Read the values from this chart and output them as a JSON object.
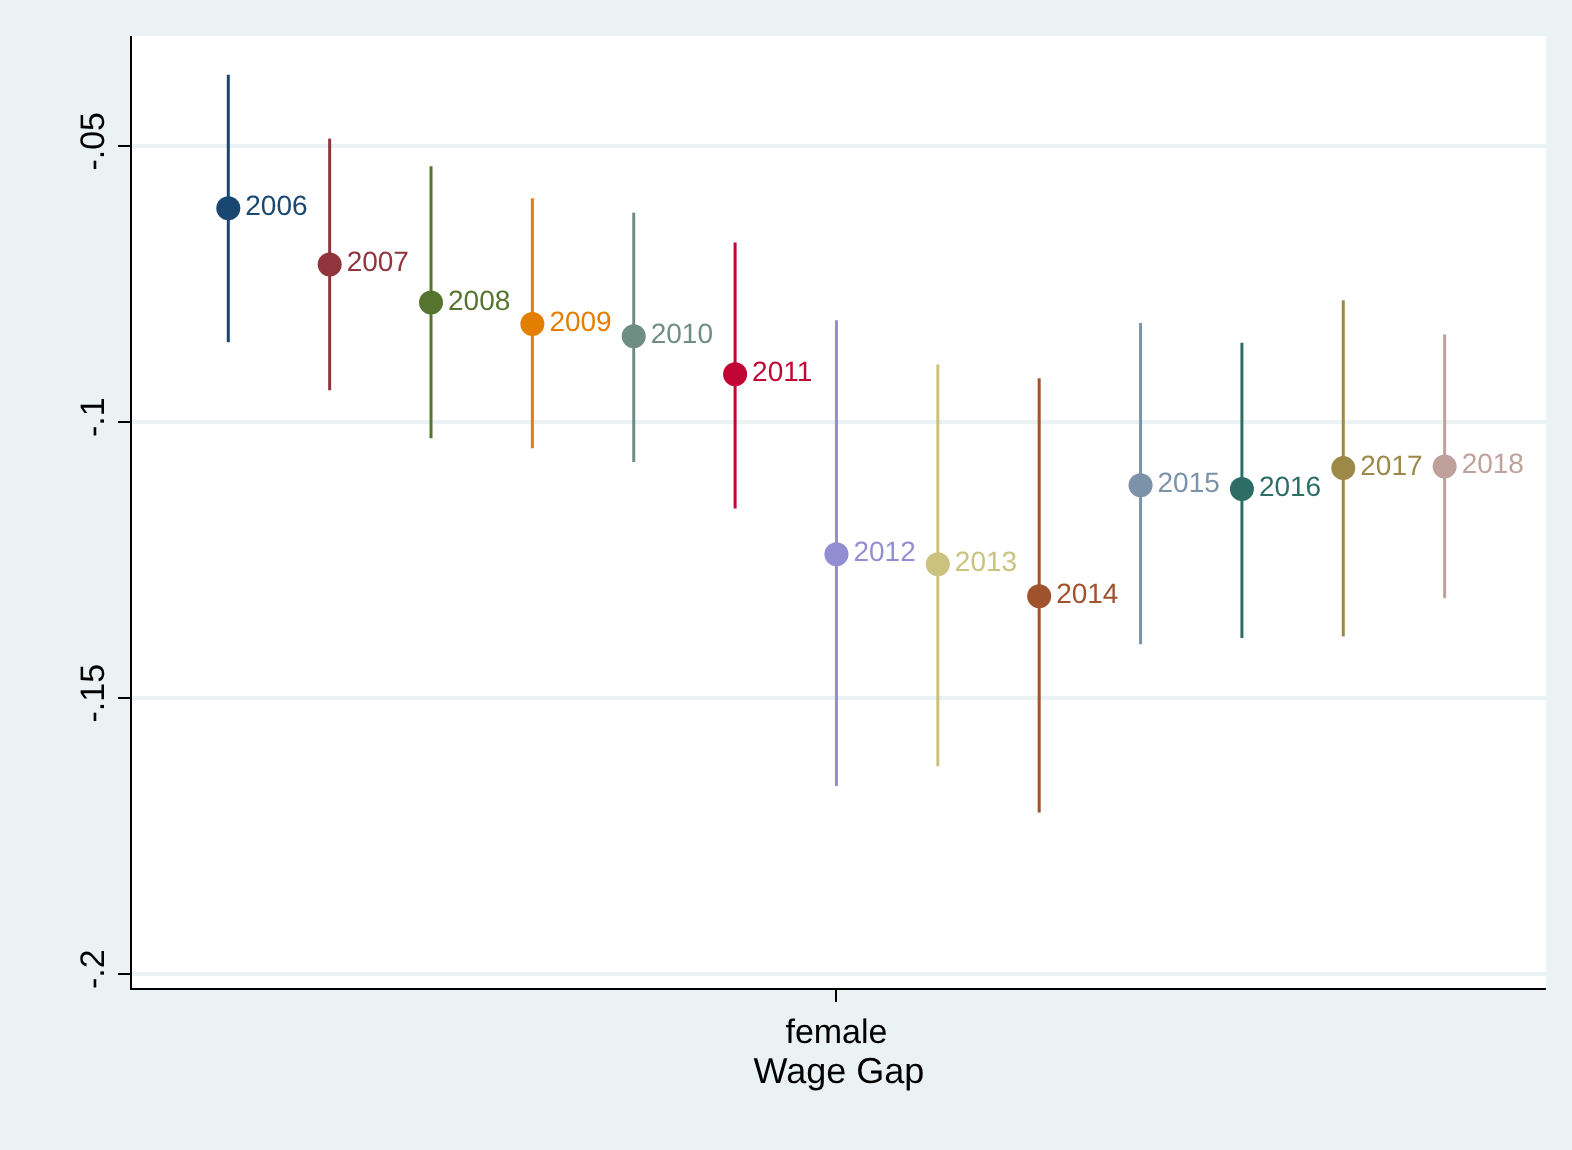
{
  "chart_data": {
    "type": "scatter",
    "xlabel": "Wage Gap",
    "categories": [
      null,
      null,
      null,
      null,
      null,
      null,
      "female",
      null,
      null,
      null,
      null,
      null,
      null
    ],
    "ylim": [
      -0.2025,
      -0.03
    ],
    "yticks": [
      {
        "value": -0.05,
        "label": "-.05"
      },
      {
        "value": -0.1,
        "label": "-.1"
      },
      {
        "value": -0.15,
        "label": "-.15"
      },
      {
        "value": -0.2,
        "label": "-.2"
      }
    ],
    "grid": "y",
    "legend": false,
    "marker": "circle",
    "series": [
      {
        "name": "2006",
        "color": "#1a476f",
        "values": [
          -0.0612,
          null,
          null,
          null,
          null,
          null,
          null,
          null,
          null,
          null,
          null,
          null,
          null
        ],
        "errors": [
          [
            -0.0855,
            -0.037
          ],
          null,
          null,
          null,
          null,
          null,
          null,
          null,
          null,
          null,
          null,
          null,
          null
        ]
      },
      {
        "name": "2007",
        "color": "#90353b",
        "values": [
          null,
          -0.0714,
          null,
          null,
          null,
          null,
          null,
          null,
          null,
          null,
          null,
          null,
          null
        ],
        "errors": [
          null,
          [
            -0.0942,
            -0.0486
          ],
          null,
          null,
          null,
          null,
          null,
          null,
          null,
          null,
          null,
          null,
          null
        ]
      },
      {
        "name": "2008",
        "color": "#55752f",
        "values": [
          null,
          null,
          -0.0783,
          null,
          null,
          null,
          null,
          null,
          null,
          null,
          null,
          null,
          null
        ],
        "errors": [
          null,
          null,
          [
            -0.1029,
            -0.0536
          ],
          null,
          null,
          null,
          null,
          null,
          null,
          null,
          null,
          null,
          null
        ]
      },
      {
        "name": "2009",
        "color": "#e37e00",
        "values": [
          null,
          null,
          null,
          -0.0822,
          null,
          null,
          null,
          null,
          null,
          null,
          null,
          null,
          null
        ],
        "errors": [
          null,
          null,
          null,
          [
            -0.1047,
            -0.0594
          ],
          null,
          null,
          null,
          null,
          null,
          null,
          null,
          null,
          null
        ]
      },
      {
        "name": "2010",
        "color": "#6e8e84",
        "values": [
          null,
          null,
          null,
          null,
          -0.0844,
          null,
          null,
          null,
          null,
          null,
          null,
          null,
          null
        ],
        "errors": [
          null,
          null,
          null,
          null,
          [
            -0.1072,
            -0.062
          ],
          null,
          null,
          null,
          null,
          null,
          null,
          null,
          null
        ]
      },
      {
        "name": "2011",
        "color": "#c10534",
        "values": [
          null,
          null,
          null,
          null,
          null,
          -0.0913,
          null,
          null,
          null,
          null,
          null,
          null,
          null
        ],
        "errors": [
          null,
          null,
          null,
          null,
          null,
          [
            -0.1156,
            -0.0674
          ],
          null,
          null,
          null,
          null,
          null,
          null,
          null
        ]
      },
      {
        "name": "2012",
        "color": "#938dd2",
        "values": [
          null,
          null,
          null,
          null,
          null,
          null,
          -0.1239,
          null,
          null,
          null,
          null,
          null,
          null
        ],
        "errors": [
          null,
          null,
          null,
          null,
          null,
          null,
          [
            -0.1659,
            -0.0815
          ],
          null,
          null,
          null,
          null,
          null,
          null
        ]
      },
      {
        "name": "2013",
        "color": "#cac27e",
        "values": [
          null,
          null,
          null,
          null,
          null,
          null,
          null,
          -0.1257,
          null,
          null,
          null,
          null,
          null
        ],
        "errors": [
          null,
          null,
          null,
          null,
          null,
          null,
          null,
          [
            -0.1623,
            -0.0895
          ],
          null,
          null,
          null,
          null,
          null
        ]
      },
      {
        "name": "2014",
        "color": "#a0522d",
        "values": [
          null,
          null,
          null,
          null,
          null,
          null,
          null,
          null,
          -0.1315,
          null,
          null,
          null,
          null
        ],
        "errors": [
          null,
          null,
          null,
          null,
          null,
          null,
          null,
          null,
          [
            -0.1707,
            -0.092
          ],
          null,
          null,
          null,
          null
        ]
      },
      {
        "name": "2015",
        "color": "#7b92a8",
        "values": [
          null,
          null,
          null,
          null,
          null,
          null,
          null,
          null,
          null,
          -0.1114,
          null,
          null,
          null
        ],
        "errors": [
          null,
          null,
          null,
          null,
          null,
          null,
          null,
          null,
          null,
          [
            -0.1402,
            -0.082
          ],
          null,
          null,
          null
        ]
      },
      {
        "name": "2016",
        "color": "#2d6d66",
        "values": [
          null,
          null,
          null,
          null,
          null,
          null,
          null,
          null,
          null,
          null,
          -0.1121,
          null,
          null
        ],
        "errors": [
          null,
          null,
          null,
          null,
          null,
          null,
          null,
          null,
          null,
          null,
          [
            -0.1391,
            -0.0856
          ],
          null,
          null
        ]
      },
      {
        "name": "2017",
        "color": "#9c8847",
        "values": [
          null,
          null,
          null,
          null,
          null,
          null,
          null,
          null,
          null,
          null,
          null,
          -0.1083,
          null
        ],
        "errors": [
          null,
          null,
          null,
          null,
          null,
          null,
          null,
          null,
          null,
          null,
          null,
          [
            -0.1388,
            -0.0779
          ],
          null
        ]
      },
      {
        "name": "2018",
        "color": "#bfa19c",
        "values": [
          null,
          null,
          null,
          null,
          null,
          null,
          null,
          null,
          null,
          null,
          null,
          null,
          -0.108
        ],
        "errors": [
          null,
          null,
          null,
          null,
          null,
          null,
          null,
          null,
          null,
          null,
          null,
          null,
          [
            -0.1319,
            -0.0841
          ]
        ]
      }
    ]
  }
}
